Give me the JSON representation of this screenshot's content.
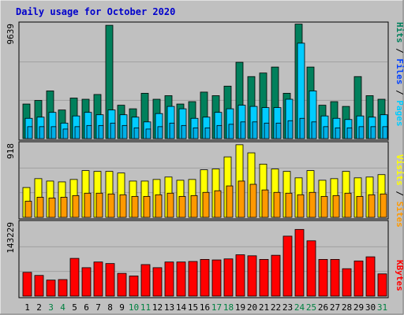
{
  "title": "Daily usage for October 2020",
  "colors": {
    "background": "#c0c0c0",
    "title": "#0000cc",
    "hits": "#00805c",
    "files": "#00ccff",
    "pages": "#00b0e8",
    "visits": "#ffff00",
    "sites": "#ff9900",
    "kbytes": "#ff0000",
    "weekend_label": "#008040",
    "weekday_label": "#000000"
  },
  "chart_data": [
    {
      "type": "bar",
      "panel": "top",
      "y_max_label": "9639",
      "ylim": [
        0,
        9639
      ],
      "categories": [
        "1",
        "2",
        "3",
        "4",
        "5",
        "6",
        "7",
        "8",
        "9",
        "10",
        "11",
        "12",
        "13",
        "14",
        "15",
        "16",
        "17",
        "18",
        "19",
        "20",
        "21",
        "22",
        "23",
        "24",
        "25",
        "26",
        "27",
        "28",
        "29",
        "30",
        "31"
      ],
      "weekend_days": [
        3,
        4,
        10,
        11,
        17,
        18,
        24,
        25,
        31
      ],
      "legend": [
        "Pages",
        "Files",
        "Hits"
      ],
      "series": [
        {
          "name": "Hits",
          "values": [
            2900,
            3200,
            4000,
            2400,
            3400,
            3300,
            3700,
            9500,
            2800,
            2500,
            3800,
            3300,
            3600,
            2900,
            3100,
            3900,
            3600,
            4400,
            6400,
            5200,
            5500,
            6000,
            3800,
            9600,
            6000,
            2800,
            3100,
            2700,
            5200,
            3600,
            3300
          ]
        },
        {
          "name": "Files",
          "values": [
            1700,
            1800,
            2200,
            1300,
            1900,
            2200,
            2000,
            2400,
            2000,
            1800,
            1400,
            2100,
            2700,
            2500,
            1700,
            1800,
            2200,
            2500,
            2800,
            2700,
            2600,
            2600,
            3300,
            8000,
            4000,
            1900,
            1700,
            1600,
            1900,
            1800,
            2000
          ]
        },
        {
          "name": "Pages",
          "values": [
            1000,
            1000,
            1000,
            800,
            1000,
            1100,
            1100,
            1300,
            1100,
            900,
            800,
            1000,
            1300,
            1100,
            900,
            900,
            1100,
            1200,
            1400,
            1400,
            1300,
            1300,
            1500,
            1700,
            1400,
            1000,
            900,
            900,
            1000,
            1000,
            1000
          ]
        }
      ]
    },
    {
      "type": "bar",
      "panel": "middle",
      "y_max_label": "918",
      "ylim": [
        0,
        918
      ],
      "categories": [
        "1",
        "2",
        "3",
        "4",
        "5",
        "6",
        "7",
        "8",
        "9",
        "10",
        "11",
        "12",
        "13",
        "14",
        "15",
        "16",
        "17",
        "18",
        "19",
        "20",
        "21",
        "22",
        "23",
        "24",
        "25",
        "26",
        "27",
        "28",
        "29",
        "30",
        "31"
      ],
      "legend": [
        "Sites",
        "Visits"
      ],
      "series": [
        {
          "name": "Visits",
          "values": [
            370,
            480,
            450,
            440,
            470,
            580,
            570,
            570,
            550,
            450,
            450,
            470,
            500,
            460,
            470,
            590,
            600,
            750,
            900,
            800,
            660,
            600,
            570,
            490,
            580,
            460,
            480,
            570,
            490,
            500,
            530
          ]
        },
        {
          "name": "Sites",
          "values": [
            200,
            250,
            240,
            250,
            270,
            300,
            300,
            290,
            280,
            260,
            260,
            280,
            300,
            260,
            270,
            310,
            330,
            390,
            450,
            410,
            340,
            310,
            300,
            280,
            310,
            260,
            270,
            300,
            260,
            280,
            290
          ]
        }
      ]
    },
    {
      "type": "bar",
      "panel": "bottom",
      "y_max_label": "143229",
      "ylim": [
        0,
        143229
      ],
      "categories": [
        "1",
        "2",
        "3",
        "4",
        "5",
        "6",
        "7",
        "8",
        "9",
        "10",
        "11",
        "12",
        "13",
        "14",
        "15",
        "16",
        "17",
        "18",
        "19",
        "20",
        "21",
        "22",
        "23",
        "24",
        "25",
        "26",
        "27",
        "28",
        "29",
        "30",
        "31"
      ],
      "legend": [
        "KBytes"
      ],
      "series": [
        {
          "name": "KBytes",
          "values": [
            46000,
            40000,
            31000,
            32000,
            73000,
            55000,
            66000,
            63000,
            44000,
            39000,
            61000,
            55000,
            66000,
            66000,
            67000,
            71000,
            70000,
            72000,
            80000,
            78000,
            71000,
            79000,
            116000,
            129000,
            107000,
            71000,
            71000,
            53000,
            68000,
            76000,
            43000
          ]
        }
      ]
    }
  ]
}
